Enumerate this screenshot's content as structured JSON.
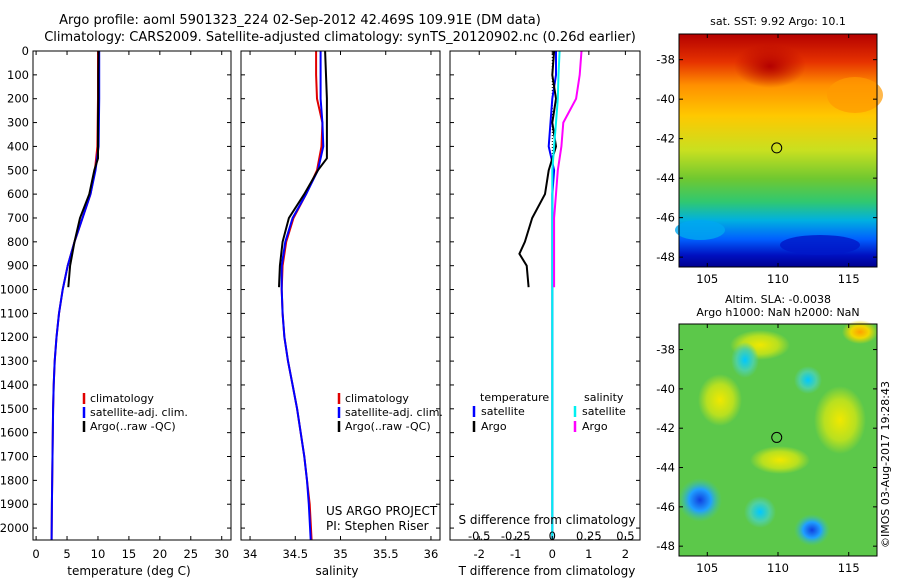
{
  "header": {
    "title_line1": "Argo profile: aoml 5901323_224 02-Sep-2012 42.469S 109.91E (DM data)",
    "title_line2": "Climatology: CARS2009. Satellite-adjusted climatology: synTS_20120902.nc (0.26d earlier)"
  },
  "colors": {
    "red": "#e00000",
    "blue": "#0000ff",
    "black": "#000000",
    "cyan": "#00f0f0",
    "magenta": "#ff00ff"
  },
  "chart_data": [
    {
      "type": "line",
      "panel": "temperature",
      "xlabel": "temperature (deg C)",
      "ylabel": "depth",
      "xlim": [
        -0.5,
        31.5
      ],
      "ylim": [
        2050,
        0
      ],
      "xticks": [
        0,
        5,
        10,
        15,
        20,
        25,
        30
      ],
      "yticks": [
        0,
        100,
        200,
        300,
        400,
        500,
        600,
        700,
        800,
        900,
        1000,
        1100,
        1200,
        1300,
        1400,
        1500,
        1600,
        1700,
        1800,
        1900,
        2000
      ],
      "legend": [
        "climatology",
        "satellite-adj. clim.",
        "Argo(..raw -QC)"
      ],
      "series": [
        {
          "name": "climatology",
          "color": "red",
          "x": [
            10.0,
            10.0,
            10.0,
            9.95,
            9.9,
            9.5,
            8.8,
            7.5,
            6.2,
            5.1,
            4.3,
            3.7,
            3.3,
            3.0,
            2.85,
            2.75,
            2.7,
            2.65,
            2.6,
            2.55,
            2.5
          ],
          "y": [
            0,
            100,
            200,
            300,
            400,
            500,
            600,
            700,
            800,
            900,
            1000,
            1100,
            1200,
            1300,
            1400,
            1500,
            1600,
            1700,
            1800,
            1900,
            2050
          ]
        },
        {
          "name": "satellite-adj. clim.",
          "color": "blue",
          "x": [
            10.2,
            10.2,
            10.2,
            10.15,
            10.1,
            9.6,
            8.8,
            7.5,
            6.2,
            5.1,
            4.3,
            3.7,
            3.3,
            3.0,
            2.85,
            2.75,
            2.7,
            2.65,
            2.6,
            2.55,
            2.5
          ],
          "y": [
            0,
            100,
            200,
            300,
            400,
            500,
            600,
            700,
            800,
            900,
            1000,
            1100,
            1200,
            1300,
            1400,
            1500,
            1600,
            1700,
            1800,
            1900,
            2050
          ]
        },
        {
          "name": "Argo(..raw -QC)",
          "color": "black",
          "x": [
            10.1,
            10.05,
            10.05,
            10.0,
            10.0,
            9.4,
            8.6,
            7.1,
            6.2,
            5.5,
            5.2
          ],
          "y": [
            0,
            100,
            200,
            300,
            450,
            500,
            600,
            700,
            800,
            900,
            990
          ]
        }
      ]
    },
    {
      "type": "line",
      "panel": "salinity",
      "xlabel": "salinity",
      "xlim": [
        33.9,
        36.1
      ],
      "ylim": [
        2050,
        0
      ],
      "xticks": [
        34,
        34.5,
        35,
        35.5,
        36
      ],
      "legend": [
        "climatology",
        "satellite-adj. clim.",
        "Argo(..raw -QC)"
      ],
      "annotation": [
        "US ARGO PROJECT",
        "PI: Stephen Riser"
      ],
      "series": [
        {
          "name": "climatology",
          "color": "red",
          "x": [
            34.73,
            34.73,
            34.74,
            34.8,
            34.79,
            34.74,
            34.62,
            34.48,
            34.4,
            34.36,
            34.35,
            34.36,
            34.38,
            34.42,
            34.47,
            34.52,
            34.56,
            34.6,
            34.63,
            34.66,
            34.68
          ],
          "y": [
            0,
            100,
            200,
            300,
            400,
            500,
            600,
            700,
            800,
            900,
            1000,
            1100,
            1200,
            1300,
            1400,
            1500,
            1600,
            1700,
            1800,
            1900,
            2050
          ]
        },
        {
          "name": "satellite-adj. clim.",
          "color": "blue",
          "x": [
            34.78,
            34.78,
            34.78,
            34.8,
            34.81,
            34.75,
            34.62,
            34.47,
            34.39,
            34.35,
            34.35,
            34.36,
            34.38,
            34.42,
            34.47,
            34.52,
            34.56,
            34.6,
            34.63,
            34.65,
            34.67
          ],
          "y": [
            0,
            100,
            200,
            300,
            400,
            500,
            600,
            700,
            800,
            900,
            1000,
            1100,
            1200,
            1300,
            1400,
            1500,
            1600,
            1700,
            1800,
            1900,
            2050
          ]
        },
        {
          "name": "Argo(..raw -QC)",
          "color": "black",
          "x": [
            34.83,
            34.84,
            34.85,
            34.85,
            34.85,
            34.75,
            34.6,
            34.43,
            34.36,
            34.33,
            34.32
          ],
          "y": [
            0,
            100,
            200,
            300,
            450,
            500,
            600,
            700,
            800,
            900,
            990
          ]
        }
      ]
    },
    {
      "type": "line",
      "panel": "difference",
      "xlabel": "T difference from climatology",
      "xlabel_top": "S difference from climatology",
      "xlim": [
        -2.8,
        2.4
      ],
      "ylim": [
        2050,
        0
      ],
      "xticks": [
        -2,
        -1,
        0,
        1,
        2
      ],
      "xticks_top": [
        -0.5,
        -0.25,
        0,
        0.25,
        0.5
      ],
      "legend_temperature_title": "temperature",
      "legend_salinity_title": "salinity",
      "legend": [
        "satellite",
        "Argo",
        "satellite",
        "Argo"
      ],
      "series": [
        {
          "name": "temperature satellite",
          "color": "blue",
          "x": [
            0.1,
            0.1,
            0.0,
            -0.05,
            -0.1,
            0.05,
            0.0,
            0.0,
            0.0,
            0.0,
            0.0,
            0.0,
            0.0
          ],
          "y": [
            0,
            100,
            200,
            300,
            400,
            500,
            600,
            800,
            1000,
            1200,
            1500,
            1800,
            2050
          ]
        },
        {
          "name": "temperature Argo",
          "color": "black",
          "x": [
            0.05,
            0.0,
            0.1,
            0.0,
            0.1,
            -0.1,
            -0.2,
            -0.55,
            -0.75,
            -0.9,
            -0.7,
            -0.65
          ],
          "y": [
            0,
            100,
            200,
            300,
            400,
            500,
            600,
            700,
            800,
            850,
            900,
            990
          ]
        },
        {
          "name": "salinity satellite",
          "color": "cyan",
          "x": [
            0.2,
            0.17,
            0.15,
            0.1,
            0.05,
            0.0,
            0.0,
            0.0,
            0.0,
            0.0,
            0.0,
            0.0
          ],
          "y": [
            0,
            100,
            200,
            300,
            400,
            500,
            600,
            800,
            1000,
            1400,
            1800,
            2050
          ]
        },
        {
          "name": "salinity Argo",
          "color": "magenta",
          "x": [
            0.8,
            0.75,
            0.65,
            0.3,
            0.25,
            0.15,
            0.1,
            0.05,
            0.05,
            0.05,
            0.05
          ],
          "y": [
            0,
            100,
            200,
            300,
            400,
            500,
            600,
            700,
            800,
            900,
            990
          ]
        }
      ]
    },
    {
      "type": "heatmap",
      "panel": "sst_map",
      "title": "sat. SST: 9.92  Argo: 10.1",
      "xlim": [
        103,
        117
      ],
      "ylim": [
        -48.5,
        -36.7
      ],
      "xticks": [
        105,
        110,
        115
      ],
      "yticks": [
        -38,
        -40,
        -42,
        -44,
        -46,
        -48
      ],
      "marker": {
        "lon": 109.91,
        "lat": -42.469
      }
    },
    {
      "type": "heatmap",
      "panel": "sla_map",
      "title": "Altim. SLA: -0.0038",
      "subtitle": "Argo h1000: NaN h2000: NaN",
      "xlim": [
        103,
        117
      ],
      "ylim": [
        -48.5,
        -36.7
      ],
      "xticks": [
        105,
        110,
        115
      ],
      "yticks": [
        -38,
        -40,
        -42,
        -44,
        -46,
        -48
      ],
      "marker": {
        "lon": 109.91,
        "lat": -42.469
      }
    }
  ],
  "watermark": "©IMOS 03-Aug-2017 19:28:43"
}
